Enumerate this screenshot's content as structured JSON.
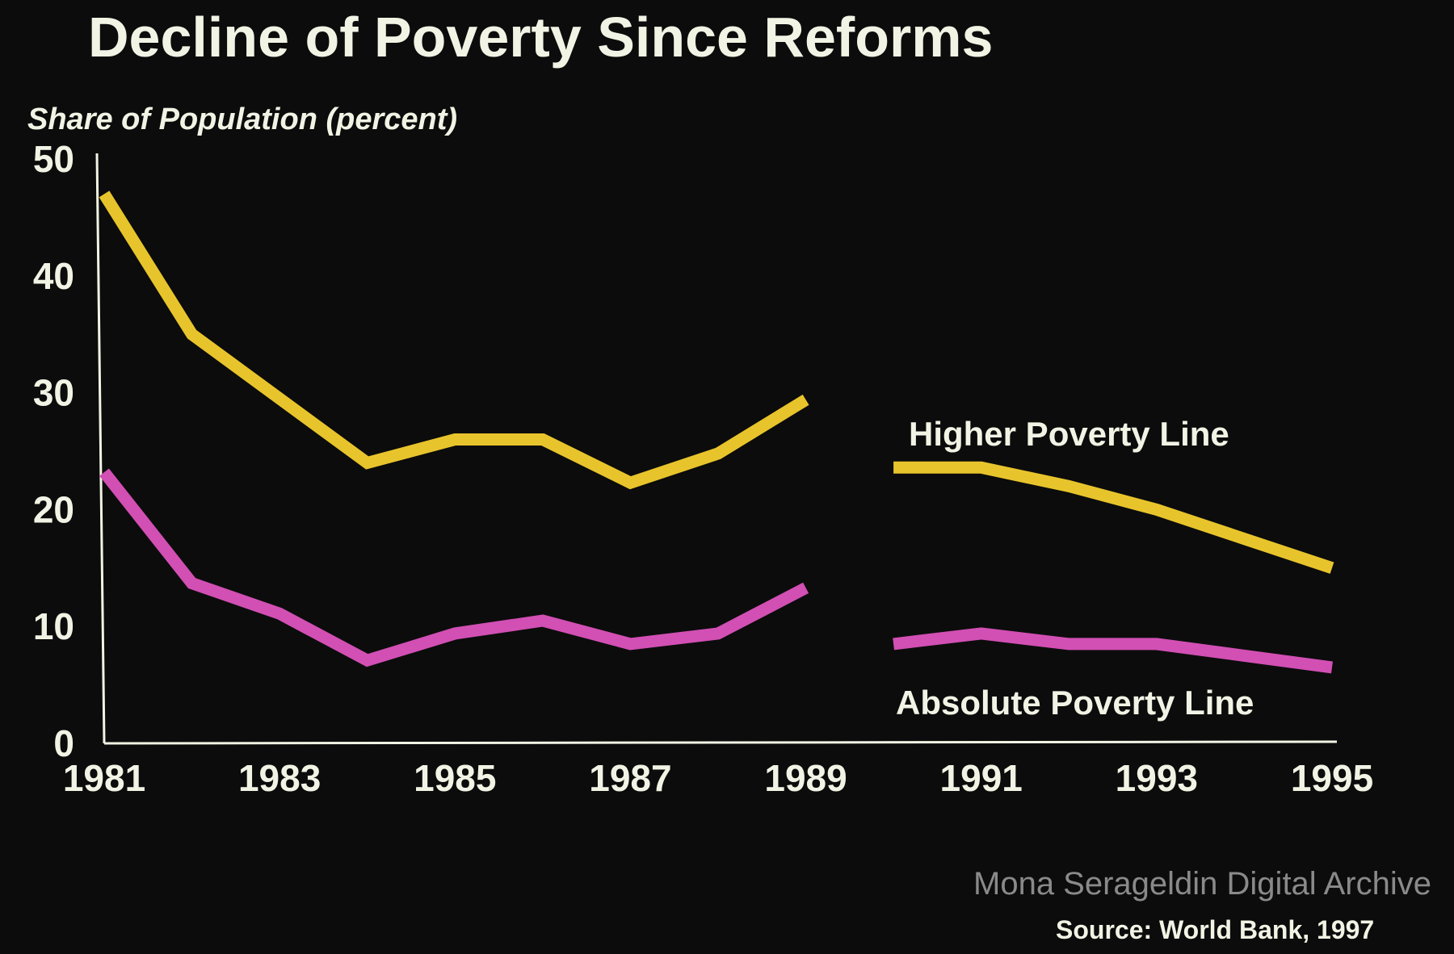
{
  "chart_data": {
    "type": "line",
    "title": "Decline of Poverty Since Reforms",
    "ylabel": "Share of Population (percent)",
    "xlabel": "",
    "ylim": [
      0,
      50
    ],
    "yticks": [
      "0",
      "10",
      "20",
      "30",
      "40",
      "50"
    ],
    "xticks": [
      "1981",
      "1983",
      "1985",
      "1987",
      "1989",
      "1991",
      "1993",
      "1995"
    ],
    "x": [
      1981,
      1982,
      1983,
      1984,
      1985,
      1986,
      1987,
      1988,
      1989,
      1990,
      1991,
      1992,
      1993,
      1994,
      1995
    ],
    "gap_after": 1989,
    "grid": false,
    "series": [
      {
        "name": "Higher Poverty Line",
        "color": "#e8c42c",
        "values": [
          47,
          35,
          29.5,
          24,
          26,
          26,
          22.3,
          24.8,
          29.4,
          23.6,
          23.6,
          22,
          20,
          17.5,
          15
        ]
      },
      {
        "name": "Absolute Poverty Line",
        "color": "#d24fb4",
        "values": [
          23.2,
          13.7,
          11.1,
          7.1,
          9.4,
          10.5,
          8.5,
          9.4,
          13.3,
          8.5,
          9.4,
          8.5,
          8.5,
          7.5,
          6.5
        ]
      }
    ],
    "source": "Source: World Bank, 1997"
  },
  "watermark": "Mona Serageldin Digital Archive"
}
